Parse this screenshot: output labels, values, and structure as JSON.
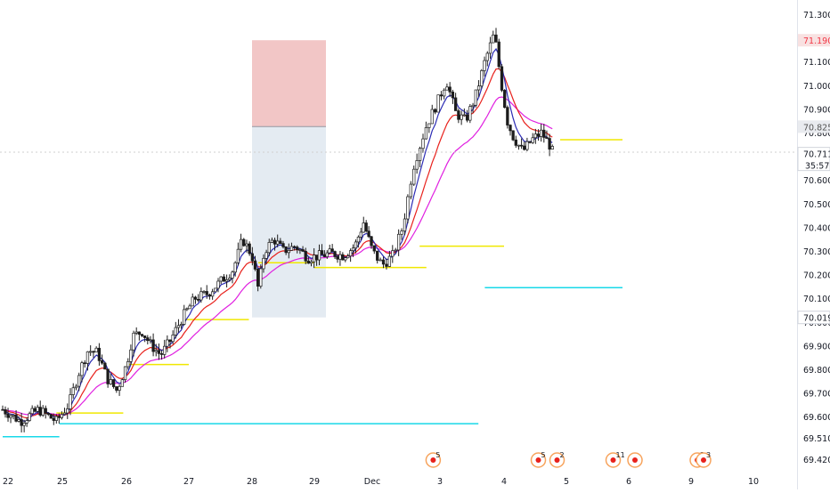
{
  "chart_data": {
    "type": "candlestick",
    "ylim": [
      69.36,
      71.36
    ],
    "y_ticks": [
      "69.420",
      "69.510",
      "69.600",
      "69.700",
      "69.800",
      "69.900",
      "70.000",
      "70.100",
      "70.200",
      "70.300",
      "70.400",
      "70.500",
      "70.600",
      "70.700",
      "70.800",
      "70.900",
      "71.000",
      "71.100",
      "71.300"
    ],
    "x_ticks": [
      "22",
      "25",
      "26",
      "27",
      "28",
      "29",
      "Dec",
      "3",
      "4",
      "5",
      "6",
      "9",
      "10"
    ],
    "price_labels": {
      "target": {
        "text": "71.190",
        "value": 71.19,
        "color": "#f23645"
      },
      "entry": {
        "text": "70.825",
        "value": 70.825,
        "color": "#555555"
      },
      "current": {
        "text": "70.711",
        "value": 70.711,
        "color": "#ffffff"
      },
      "countdown": {
        "text": "35:57"
      },
      "stop": {
        "text": "70.019",
        "value": 70.019,
        "color": "#ffffff"
      }
    },
    "position_tool": {
      "x_start": "4",
      "x_end": "5.2",
      "profit_zone": [
        70.825,
        71.19
      ],
      "loss_zone": [
        70.019,
        70.825
      ],
      "profit_color": "#f2c6c6",
      "loss_color": "#e4ebf2"
    },
    "indicator_colors": {
      "fast_ma": "#2b2bb4",
      "mid_ma": "#e8211c",
      "slow_ma": "#e020e0"
    },
    "levels": [
      {
        "y": 69.515,
        "x0": 0,
        "x1": 0.95,
        "color": "#18d8e8"
      },
      {
        "y": 69.57,
        "x0": 0.95,
        "x1": 7.6,
        "color": "#18d8e8"
      },
      {
        "y": 70.145,
        "x0": 7.7,
        "x1": 9.9,
        "color": "#18d8e8"
      },
      {
        "y": 69.615,
        "x0": 0.9,
        "x1": 1.95,
        "color": "#f0e800"
      },
      {
        "y": 69.82,
        "x0": 2.0,
        "x1": 3.0,
        "color": "#f0e800"
      },
      {
        "y": 70.01,
        "x0": 2.95,
        "x1": 3.95,
        "color": "#f0e800"
      },
      {
        "y": 70.25,
        "x0": 4.1,
        "x1": 5.0,
        "color": "#f0e800"
      },
      {
        "y": 70.23,
        "x0": 5.0,
        "x1": 6.8,
        "color": "#f0e800"
      },
      {
        "y": 70.32,
        "x0": 6.7,
        "x1": 8.0,
        "color": "#f0e800"
      },
      {
        "y": 70.77,
        "x0": 8.9,
        "x1": 9.9,
        "color": "#f0e800"
      }
    ],
    "events": [
      {
        "x": 6.9,
        "count": "5"
      },
      {
        "x": 8.55,
        "count": "5"
      },
      {
        "x": 8.85,
        "count": "2"
      },
      {
        "x": 9.75,
        "count": "11"
      },
      {
        "x": 10.1,
        "count": ""
      },
      {
        "x": 11.1,
        "count": "2"
      },
      {
        "x": 11.2,
        "count": "3"
      }
    ],
    "price_path": [
      [
        0.0,
        69.63
      ],
      [
        0.3,
        69.58
      ],
      [
        0.6,
        69.63
      ],
      [
        0.9,
        69.58
      ],
      [
        1.1,
        69.65
      ],
      [
        1.25,
        69.78
      ],
      [
        1.4,
        69.88
      ],
      [
        1.55,
        69.87
      ],
      [
        1.7,
        69.76
      ],
      [
        1.85,
        69.71
      ],
      [
        2.0,
        69.82
      ],
      [
        2.1,
        69.94
      ],
      [
        2.25,
        69.96
      ],
      [
        2.4,
        69.9
      ],
      [
        2.55,
        69.86
      ],
      [
        2.7,
        69.92
      ],
      [
        2.9,
        70.02
      ],
      [
        3.1,
        70.1
      ],
      [
        3.3,
        70.12
      ],
      [
        3.5,
        70.17
      ],
      [
        3.7,
        70.22
      ],
      [
        3.85,
        70.35
      ],
      [
        4.0,
        70.28
      ],
      [
        4.1,
        70.14
      ],
      [
        4.2,
        70.3
      ],
      [
        4.35,
        70.35
      ],
      [
        4.5,
        70.3
      ],
      [
        4.7,
        70.32
      ],
      [
        4.9,
        70.27
      ],
      [
        5.1,
        70.28
      ],
      [
        5.3,
        70.29
      ],
      [
        5.5,
        70.28
      ],
      [
        5.7,
        70.32
      ],
      [
        5.85,
        70.42
      ],
      [
        6.0,
        70.3
      ],
      [
        6.15,
        70.24
      ],
      [
        6.3,
        70.28
      ],
      [
        6.45,
        70.4
      ],
      [
        6.6,
        70.65
      ],
      [
        6.8,
        70.83
      ],
      [
        6.95,
        70.92
      ],
      [
        7.1,
        71.02
      ],
      [
        7.25,
        70.88
      ],
      [
        7.4,
        70.85
      ],
      [
        7.55,
        70.95
      ],
      [
        7.7,
        71.1
      ],
      [
        7.85,
        71.22
      ],
      [
        7.95,
        71.02
      ],
      [
        8.05,
        70.85
      ],
      [
        8.15,
        70.78
      ],
      [
        8.3,
        70.72
      ],
      [
        8.45,
        70.77
      ],
      [
        8.6,
        70.8
      ],
      [
        8.75,
        70.74
      ],
      [
        8.8,
        70.7
      ]
    ]
  }
}
